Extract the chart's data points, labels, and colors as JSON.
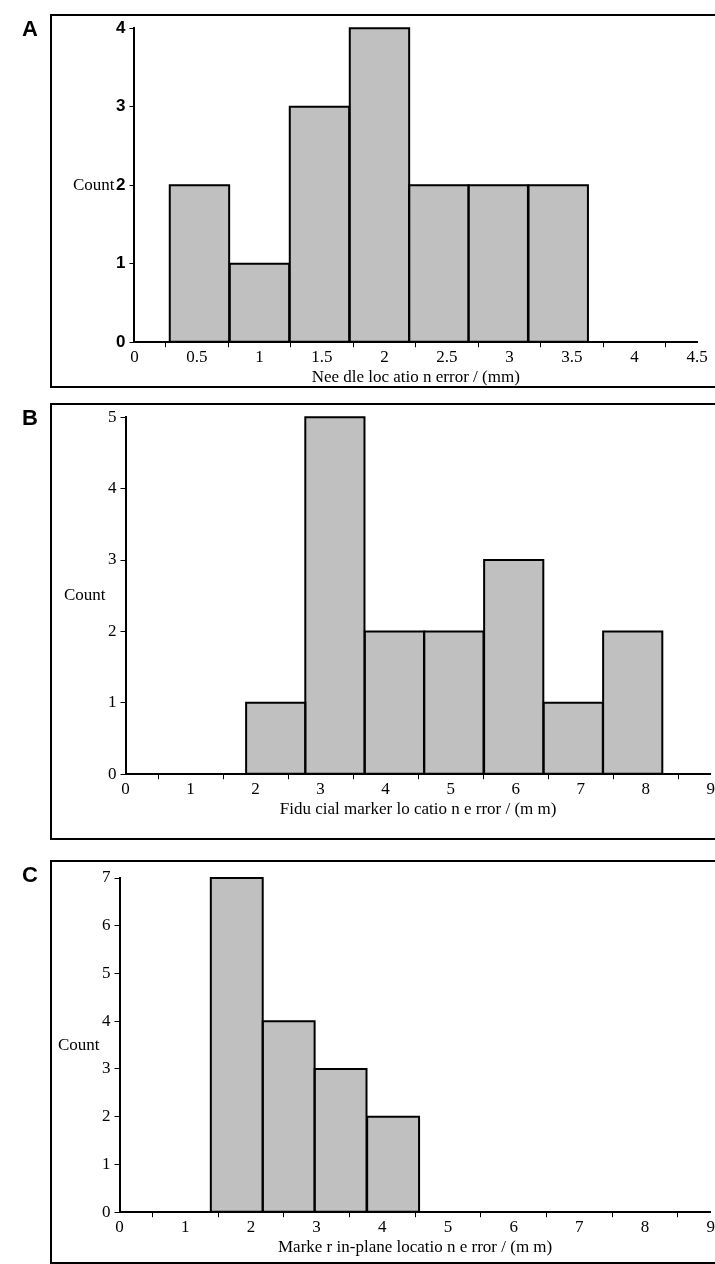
{
  "chart_data": [
    {
      "type": "histogram",
      "title": "A",
      "xlabel": "Nee dle loc atio n error / (mm)",
      "ylabel": "Count",
      "color": "#c0c0c0",
      "bins": [
        0.28,
        0.76,
        1.24,
        1.72,
        2.2,
        2.67,
        3.15,
        3.63
      ],
      "values": [
        2,
        1,
        3,
        4,
        2,
        2,
        2
      ],
      "xlim": [
        0,
        4.5
      ],
      "xticks": [
        0,
        0.5,
        1,
        1.5,
        2,
        2.5,
        3,
        3.5,
        4,
        4.5
      ],
      "ylim": [
        0,
        4
      ],
      "yticks": [
        0,
        1,
        2,
        3,
        4
      ]
    },
    {
      "type": "histogram",
      "title": "B",
      "xlabel": "Fidu cial marker lo catio n e rror / (m m)",
      "ylabel": "Count",
      "color": "#c0c0c0",
      "bins": [
        1.86,
        2.76,
        3.68,
        4.59,
        5.51,
        6.43,
        7.34,
        8.26
      ],
      "values": [
        1,
        5,
        2,
        2,
        3,
        1,
        2
      ],
      "xlim": [
        0,
        9
      ],
      "xticks": [
        0,
        1,
        2,
        3,
        4,
        5,
        6,
        7,
        8,
        9
      ],
      "ylim": [
        0,
        5
      ],
      "yticks": [
        0,
        1,
        2,
        3,
        4,
        5
      ]
    },
    {
      "type": "histogram",
      "title": "C",
      "xlabel": "Marke r in-plane locatio n e rror / (m m)",
      "ylabel": "Count",
      "color": "#c0c0c0",
      "bins": [
        1.39,
        2.18,
        2.97,
        3.76,
        4.57
      ],
      "values": [
        7,
        4,
        3,
        2
      ],
      "xlim": [
        0,
        9
      ],
      "xticks": [
        0,
        1,
        2,
        3,
        4,
        5,
        6,
        7,
        8,
        9
      ],
      "ylim": [
        0,
        7
      ],
      "yticks": [
        0,
        1,
        2,
        3,
        4,
        5,
        6,
        7
      ]
    }
  ]
}
